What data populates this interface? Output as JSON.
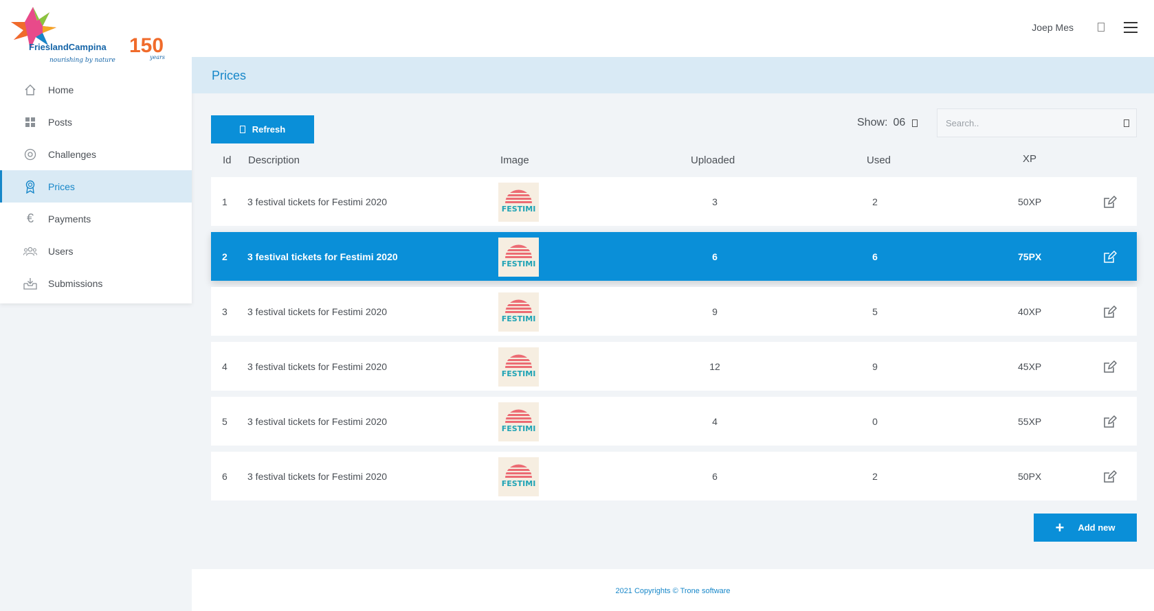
{
  "logo": {
    "brand_name": "FrieslandCampina",
    "tagline": "nourishing by nature",
    "anniversary_number": "150",
    "anniversary_text": "years"
  },
  "sidebar": {
    "items": [
      {
        "label": "Home",
        "icon": "home-icon",
        "active": false
      },
      {
        "label": "Posts",
        "icon": "grid-icon",
        "active": false
      },
      {
        "label": "Challenges",
        "icon": "target-icon",
        "active": false
      },
      {
        "label": "Prices",
        "icon": "award-icon",
        "active": true
      },
      {
        "label": "Payments",
        "icon": "euro-icon",
        "active": false
      },
      {
        "label": "Users",
        "icon": "users-icon",
        "active": false
      },
      {
        "label": "Submissions",
        "icon": "inbox-icon",
        "active": false
      }
    ]
  },
  "header": {
    "user_name": "Joep Mes"
  },
  "page": {
    "title": "Prices"
  },
  "toolbar": {
    "refresh_label": "Refresh",
    "show_label": "Show:",
    "show_value": "06",
    "search_placeholder": "Search.."
  },
  "table": {
    "columns": [
      "Id",
      "Description",
      "Image",
      "Uploaded",
      "Used",
      "XP"
    ],
    "thumbnail_text": "FESTIMI",
    "rows": [
      {
        "id": "1",
        "description": "3 festival tickets for Festimi 2020",
        "uploaded": "3",
        "used": "2",
        "xp": "50XP"
      },
      {
        "id": "2",
        "description": "3 festival tickets for Festimi 2020",
        "uploaded": "6",
        "used": "6",
        "xp": "75PX"
      },
      {
        "id": "3",
        "description": "3 festival tickets for Festimi 2020",
        "uploaded": "9",
        "used": "5",
        "xp": "40XP"
      },
      {
        "id": "4",
        "description": "3 festival tickets for Festimi 2020",
        "uploaded": "12",
        "used": "9",
        "xp": "45XP"
      },
      {
        "id": "5",
        "description": "3 festival tickets for Festimi 2020",
        "uploaded": "4",
        "used": "0",
        "xp": "55XP"
      },
      {
        "id": "6",
        "description": "3 festival tickets for Festimi 2020",
        "uploaded": "6",
        "used": "2",
        "xp": "50PX"
      }
    ],
    "selected_row": "2"
  },
  "add_button": {
    "label": "Add new"
  },
  "footer": {
    "text": "2021 Copyrights © Trone software"
  },
  "colors": {
    "accent": "#0a8fd8",
    "active_bg": "#d9eaf5",
    "page_bg": "#f1f4f7"
  }
}
